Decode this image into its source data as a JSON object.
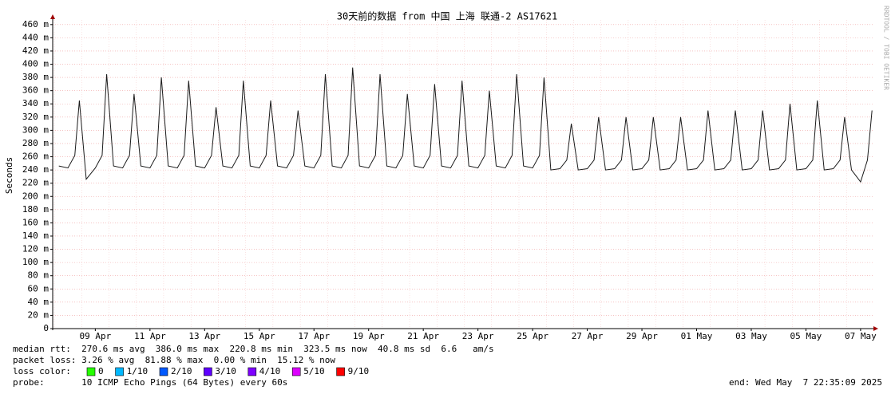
{
  "chart_data": {
    "type": "line",
    "title": "30天前的数据 from 中国 上海 联通-2 AS17621",
    "y_label": "Seconds",
    "side_text": "RRDTOOL / TOBI OETIKER",
    "ylim": [
      0,
      0.467
    ],
    "yticks": [
      0,
      {
        "value": 0.02,
        "label": "20 m"
      },
      {
        "value": 0.04,
        "label": "40 m"
      },
      {
        "value": 0.06,
        "label": "60 m"
      },
      {
        "value": 0.08,
        "label": "80 m"
      },
      {
        "value": 0.1,
        "label": "100 m"
      },
      {
        "value": 0.12,
        "label": "120 m"
      },
      {
        "value": 0.14,
        "label": "140 m"
      },
      {
        "value": 0.16,
        "label": "160 m"
      },
      {
        "value": 0.18,
        "label": "180 m"
      },
      {
        "value": 0.2,
        "label": "200 m"
      },
      {
        "value": 0.22,
        "label": "220 m"
      },
      {
        "value": 0.24,
        "label": "240 m"
      },
      {
        "value": 0.26,
        "label": "260 m"
      },
      {
        "value": 0.28,
        "label": "280 m"
      },
      {
        "value": 0.3,
        "label": "300 m"
      },
      {
        "value": 0.32,
        "label": "320 m"
      },
      {
        "value": 0.34,
        "label": "340 m"
      },
      {
        "value": 0.36,
        "label": "360 m"
      },
      {
        "value": 0.38,
        "label": "380 m"
      },
      {
        "value": 0.4,
        "label": "400 m"
      },
      {
        "value": 0.42,
        "label": "420 m"
      },
      {
        "value": 0.44,
        "label": "440 m"
      },
      {
        "value": 0.46,
        "label": "460 m"
      }
    ],
    "xlim": [
      "2025-04-07T22:35",
      "2025-05-07T22:35"
    ],
    "xticks": [
      {
        "value": "2025-04-09T12:00",
        "label": "09 Apr"
      },
      {
        "value": "2025-04-11T12:00",
        "label": "11 Apr"
      },
      {
        "value": "2025-04-13T12:00",
        "label": "13 Apr"
      },
      {
        "value": "2025-04-15T12:00",
        "label": "15 Apr"
      },
      {
        "value": "2025-04-17T12:00",
        "label": "17 Apr"
      },
      {
        "value": "2025-04-19T12:00",
        "label": "19 Apr"
      },
      {
        "value": "2025-04-21T12:00",
        "label": "21 Apr"
      },
      {
        "value": "2025-04-23T12:00",
        "label": "23 Apr"
      },
      {
        "value": "2025-04-25T12:00",
        "label": "25 Apr"
      },
      {
        "value": "2025-04-27T12:00",
        "label": "27 Apr"
      },
      {
        "value": "2025-04-29T12:00",
        "label": "29 Apr"
      },
      {
        "value": "2025-05-01T12:00",
        "label": "01 May"
      },
      {
        "value": "2025-05-03T12:00",
        "label": "03 May"
      },
      {
        "value": "2025-05-05T12:00",
        "label": "05 May"
      },
      {
        "value": "2025-05-07T12:00",
        "label": "07 May"
      }
    ],
    "grid": true,
    "x": [
      "2025-04-08T04:00",
      "2025-04-08T12:00",
      "2025-04-08T18:00",
      "2025-04-08T22:00",
      "2025-04-09T04:00",
      "2025-04-09T12:00",
      "2025-04-09T18:00",
      "2025-04-09T22:00",
      "2025-04-10T04:00",
      "2025-04-10T12:00",
      "2025-04-10T18:00",
      "2025-04-10T22:00",
      "2025-04-11T04:00",
      "2025-04-11T12:00",
      "2025-04-11T18:00",
      "2025-04-11T22:00",
      "2025-04-12T04:00",
      "2025-04-12T12:00",
      "2025-04-12T18:00",
      "2025-04-12T22:00",
      "2025-04-13T04:00",
      "2025-04-13T12:00",
      "2025-04-13T18:00",
      "2025-04-13T22:00",
      "2025-04-14T04:00",
      "2025-04-14T12:00",
      "2025-04-14T18:00",
      "2025-04-14T22:00",
      "2025-04-15T04:00",
      "2025-04-15T12:00",
      "2025-04-15T18:00",
      "2025-04-15T22:00",
      "2025-04-16T04:00",
      "2025-04-16T12:00",
      "2025-04-16T18:00",
      "2025-04-16T22:00",
      "2025-04-17T04:00",
      "2025-04-17T12:00",
      "2025-04-17T18:00",
      "2025-04-17T22:00",
      "2025-04-18T04:00",
      "2025-04-18T12:00",
      "2025-04-18T18:00",
      "2025-04-18T22:00",
      "2025-04-19T04:00",
      "2025-04-19T12:00",
      "2025-04-19T18:00",
      "2025-04-19T22:00",
      "2025-04-20T04:00",
      "2025-04-20T12:00",
      "2025-04-20T18:00",
      "2025-04-20T22:00",
      "2025-04-21T04:00",
      "2025-04-21T12:00",
      "2025-04-21T18:00",
      "2025-04-21T22:00",
      "2025-04-22T04:00",
      "2025-04-22T12:00",
      "2025-04-22T18:00",
      "2025-04-22T22:00",
      "2025-04-23T04:00",
      "2025-04-23T12:00",
      "2025-04-23T18:00",
      "2025-04-23T22:00",
      "2025-04-24T04:00",
      "2025-04-24T12:00",
      "2025-04-24T18:00",
      "2025-04-24T22:00",
      "2025-04-25T04:00",
      "2025-04-25T12:00",
      "2025-04-25T18:00",
      "2025-04-25T22:00",
      "2025-04-26T04:00",
      "2025-04-26T12:00",
      "2025-04-26T18:00",
      "2025-04-26T22:00",
      "2025-04-27T04:00",
      "2025-04-27T12:00",
      "2025-04-27T18:00",
      "2025-04-27T22:00",
      "2025-04-28T04:00",
      "2025-04-28T12:00",
      "2025-04-28T18:00",
      "2025-04-28T22:00",
      "2025-04-29T04:00",
      "2025-04-29T12:00",
      "2025-04-29T18:00",
      "2025-04-29T22:00",
      "2025-04-30T04:00",
      "2025-04-30T12:00",
      "2025-04-30T18:00",
      "2025-04-30T22:00",
      "2025-05-01T04:00",
      "2025-05-01T12:00",
      "2025-05-01T18:00",
      "2025-05-01T22:00",
      "2025-05-02T04:00",
      "2025-05-02T12:00",
      "2025-05-02T18:00",
      "2025-05-02T22:00",
      "2025-05-03T04:00",
      "2025-05-03T12:00",
      "2025-05-03T18:00",
      "2025-05-03T22:00",
      "2025-05-04T04:00",
      "2025-05-04T12:00",
      "2025-05-04T18:00",
      "2025-05-04T22:00",
      "2025-05-05T04:00",
      "2025-05-05T12:00",
      "2025-05-05T18:00",
      "2025-05-05T22:00",
      "2025-05-06T04:00",
      "2025-05-06T12:00",
      "2025-05-06T18:00",
      "2025-05-06T22:00",
      "2025-05-07T04:00",
      "2025-05-07T12:00",
      "2025-05-07T18:00",
      "2025-05-07T22:00"
    ],
    "series": [
      {
        "color": "#1a1a1a",
        "values": [
          0.246,
          0.243,
          0.262,
          0.345,
          0.226,
          0.243,
          0.262,
          0.385,
          0.246,
          0.243,
          0.262,
          0.355,
          0.246,
          0.243,
          0.262,
          0.38,
          0.246,
          0.243,
          0.262,
          0.375,
          0.246,
          0.243,
          0.262,
          0.335,
          0.246,
          0.243,
          0.262,
          0.375,
          0.246,
          0.243,
          0.262,
          0.345,
          0.246,
          0.243,
          0.262,
          0.33,
          0.246,
          0.243,
          0.262,
          0.385,
          0.246,
          0.243,
          0.262,
          0.395,
          0.246,
          0.243,
          0.262,
          0.385,
          0.246,
          0.243,
          0.262,
          0.355,
          0.246,
          0.243,
          0.262,
          0.37,
          0.246,
          0.243,
          0.262,
          0.375,
          0.246,
          0.243,
          0.262,
          0.36,
          0.246,
          0.243,
          0.262,
          0.385,
          0.246,
          0.243,
          0.262,
          0.38,
          0.24,
          0.242,
          0.255,
          0.31,
          0.24,
          0.242,
          0.255,
          0.32,
          0.24,
          0.242,
          0.255,
          0.32,
          0.24,
          0.242,
          0.255,
          0.32,
          0.24,
          0.242,
          0.255,
          0.32,
          0.24,
          0.242,
          0.255,
          0.33,
          0.24,
          0.242,
          0.255,
          0.33,
          0.24,
          0.242,
          0.255,
          0.33,
          0.24,
          0.242,
          0.255,
          0.34,
          0.24,
          0.242,
          0.255,
          0.345,
          0.24,
          0.242,
          0.255,
          0.32,
          0.24,
          0.222,
          0.255,
          0.33
        ]
      }
    ],
    "stats": [
      "median rtt:  270.6 ms avg  386.0 ms max  220.8 ms min  323.5 ms now  40.8 ms sd  6.6   am/s",
      "packet loss: 3.26 % avg  81.88 % max  0.00 % min  15.12 % now"
    ],
    "loss_color": {
      "label": "loss color:",
      "items": [
        {
          "label": "0",
          "color": "#26ff00"
        },
        {
          "label": "1/10",
          "color": "#00b8ff"
        },
        {
          "label": "2/10",
          "color": "#0059ff"
        },
        {
          "label": "3/10",
          "color": "#5e00ff"
        },
        {
          "label": "4/10",
          "color": "#7e00ff"
        },
        {
          "label": "5/10",
          "color": "#dd00ff"
        },
        {
          "label": "9/10",
          "color": "#ff0000"
        }
      ]
    },
    "probe": "probe:       10 ICMP Echo Pings (64 Bytes) every 60s",
    "end": "end: Wed May  7 22:35:09 2025"
  }
}
